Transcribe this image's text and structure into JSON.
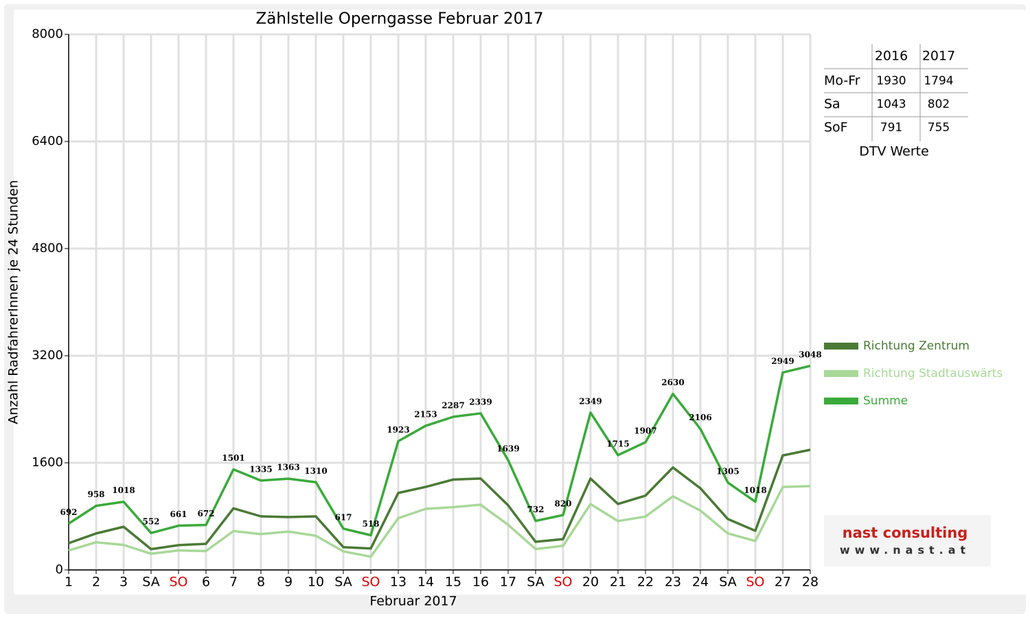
{
  "chart_data": {
    "type": "line",
    "title": "Zählstelle Operngasse Februar 2017",
    "x_label": "Februar 2017",
    "y_label": "Anzahl RadfahrerInnen je 24 Stunden",
    "categories": [
      "1",
      "2",
      "3",
      "SA",
      "SO",
      "6",
      "7",
      "8",
      "9",
      "10",
      "SA",
      "SO",
      "13",
      "14",
      "15",
      "16",
      "17",
      "SA",
      "SO",
      "20",
      "21",
      "22",
      "23",
      "24",
      "SA",
      "SO",
      "27",
      "28"
    ],
    "category_colors": [
      "#000000",
      "#000000",
      "#000000",
      "#000000",
      "#e00000",
      "#000000",
      "#000000",
      "#000000",
      "#000000",
      "#000000",
      "#000000",
      "#e00000",
      "#000000",
      "#000000",
      "#000000",
      "#000000",
      "#000000",
      "#000000",
      "#e00000",
      "#000000",
      "#000000",
      "#000000",
      "#000000",
      "#000000",
      "#000000",
      "#e00000",
      "#000000",
      "#000000"
    ],
    "ylim": [
      0,
      8000
    ],
    "yticks": [
      0,
      1600,
      3200,
      4800,
      6400,
      8000
    ],
    "grid": true,
    "series": [
      {
        "name": "Richtung Zentrum",
        "color": "#4a7a35",
        "values": [
          400,
          545,
          645,
          310,
          370,
          390,
          920,
          800,
          790,
          800,
          340,
          320,
          1150,
          1240,
          1350,
          1365,
          965,
          420,
          460,
          1365,
          985,
          1110,
          1530,
          1220,
          760,
          585,
          1710,
          1795
        ]
      },
      {
        "name": "Richtung Stadtauswärts",
        "color": "#a8d898",
        "values": [
          292,
          413,
          373,
          242,
          291,
          282,
          581,
          535,
          573,
          510,
          277,
          198,
          773,
          913,
          937,
          974,
          674,
          312,
          360,
          984,
          730,
          797,
          1100,
          886,
          545,
          433,
          1239,
          1253
        ]
      },
      {
        "name": "Summe",
        "color": "#3aaa3a",
        "data_labels": true,
        "values": [
          692,
          958,
          1018,
          552,
          661,
          672,
          1501,
          1335,
          1363,
          1310,
          617,
          518,
          1923,
          2153,
          2287,
          2339,
          1639,
          732,
          820,
          2349,
          1715,
          1907,
          2630,
          2106,
          1305,
          1018,
          2949,
          3048
        ]
      }
    ]
  },
  "table": {
    "columns": [
      "2016",
      "2017"
    ],
    "rows": [
      [
        "Mo-Fr",
        "1930",
        "1794"
      ],
      [
        "Sa",
        "1043",
        "802"
      ],
      [
        "SoF",
        "791",
        "755"
      ]
    ],
    "caption": "DTV Werte"
  },
  "logo": {
    "name": "nast consulting",
    "url": "www.nast.at"
  }
}
